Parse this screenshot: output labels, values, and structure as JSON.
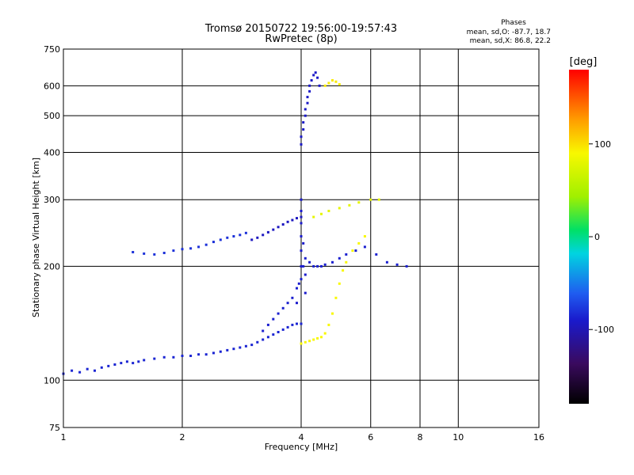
{
  "chart_data": {
    "type": "scatter",
    "title": "Tromsø 20150722 19:56:00-19:57:43",
    "subtitle": "RwPretec (8p)",
    "xlabel": "Frequency [MHz]",
    "ylabel": "Stationary phase Virtual Height [km]",
    "x_scale": "log",
    "y_scale": "log",
    "xlim": [
      1,
      16
    ],
    "ylim": [
      75,
      750
    ],
    "grid": true,
    "x_ticks": [
      {
        "value": 1,
        "label": "1"
      },
      {
        "value": 2,
        "label": "2"
      },
      {
        "value": 4,
        "label": "4"
      },
      {
        "value": 6,
        "label": "6"
      },
      {
        "value": 8,
        "label": "8"
      },
      {
        "value": 10,
        "label": "10"
      },
      {
        "value": 16,
        "label": "16"
      }
    ],
    "y_ticks": [
      {
        "value": 75,
        "label": "75"
      },
      {
        "value": 100,
        "label": "100"
      },
      {
        "value": 200,
        "label": "200"
      },
      {
        "value": 300,
        "label": "300"
      },
      {
        "value": 400,
        "label": "400"
      },
      {
        "value": 500,
        "label": "500"
      },
      {
        "value": 600,
        "label": "600"
      },
      {
        "value": 750,
        "label": "750"
      }
    ],
    "colorbar": {
      "label": "[deg]",
      "range": [
        -180,
        180
      ],
      "ticks": [
        {
          "value": 100,
          "label": "100"
        },
        {
          "value": 0,
          "label": "0"
        },
        {
          "value": -100,
          "label": "-100"
        }
      ]
    },
    "phases_legend": {
      "title": "Phases",
      "lines": [
        "mean, sd,O: -87.7, 18.7",
        "mean, sd,X:  86.8, 22.2"
      ]
    },
    "traces": [
      {
        "phase": -85,
        "points": [
          [
            1.0,
            104
          ],
          [
            1.05,
            106
          ],
          [
            1.1,
            105
          ],
          [
            1.15,
            107
          ],
          [
            1.2,
            106
          ],
          [
            1.25,
            108
          ],
          [
            1.3,
            109
          ],
          [
            1.35,
            110
          ],
          [
            1.4,
            111
          ],
          [
            1.45,
            112
          ],
          [
            1.5,
            111
          ],
          [
            1.55,
            112
          ],
          [
            1.6,
            113
          ],
          [
            1.7,
            114
          ],
          [
            1.8,
            115
          ],
          [
            1.9,
            115
          ],
          [
            2.0,
            116
          ],
          [
            2.1,
            116
          ],
          [
            2.2,
            117
          ],
          [
            2.3,
            117
          ],
          [
            2.4,
            118
          ],
          [
            2.5,
            119
          ],
          [
            2.6,
            120
          ],
          [
            2.7,
            121
          ],
          [
            2.8,
            122
          ],
          [
            2.9,
            123
          ],
          [
            3.0,
            124
          ],
          [
            3.1,
            126
          ],
          [
            3.2,
            128
          ],
          [
            3.3,
            130
          ],
          [
            3.4,
            132
          ],
          [
            3.5,
            134
          ],
          [
            3.6,
            136
          ],
          [
            3.7,
            138
          ],
          [
            3.8,
            140
          ],
          [
            3.9,
            141
          ],
          [
            4.0,
            141
          ]
        ]
      },
      {
        "phase": -88,
        "points": [
          [
            3.2,
            135
          ],
          [
            3.3,
            140
          ],
          [
            3.4,
            145
          ],
          [
            3.5,
            150
          ],
          [
            3.6,
            155
          ],
          [
            3.7,
            160
          ],
          [
            3.8,
            165
          ],
          [
            3.9,
            175
          ],
          [
            4.0,
            185
          ],
          [
            4.05,
            200
          ],
          [
            4.1,
            210
          ],
          [
            4.2,
            205
          ],
          [
            4.3,
            200
          ],
          [
            4.4,
            200
          ],
          [
            4.5,
            200
          ],
          [
            4.6,
            202
          ],
          [
            4.8,
            205
          ],
          [
            5.0,
            210
          ],
          [
            5.2,
            215
          ],
          [
            5.5,
            220
          ],
          [
            5.8,
            225
          ],
          [
            6.2,
            215
          ],
          [
            6.6,
            205
          ],
          [
            7.0,
            202
          ],
          [
            7.4,
            200
          ]
        ]
      },
      {
        "phase": -90,
        "points": [
          [
            3.9,
            160
          ],
          [
            3.95,
            180
          ],
          [
            4.0,
            200
          ],
          [
            4.0,
            220
          ],
          [
            4.0,
            240
          ],
          [
            4.0,
            260
          ],
          [
            4.0,
            280
          ],
          [
            4.0,
            300
          ],
          [
            4.05,
            230
          ],
          [
            4.1,
            190
          ],
          [
            4.1,
            170
          ]
        ]
      },
      {
        "phase": -80,
        "points": [
          [
            1.5,
            218
          ],
          [
            1.6,
            216
          ],
          [
            1.7,
            215
          ],
          [
            1.8,
            217
          ],
          [
            1.9,
            220
          ],
          [
            2.0,
            222
          ],
          [
            2.1,
            223
          ],
          [
            2.2,
            225
          ],
          [
            2.3,
            228
          ],
          [
            2.4,
            232
          ],
          [
            2.5,
            235
          ],
          [
            2.6,
            238
          ],
          [
            2.7,
            240
          ],
          [
            2.8,
            242
          ],
          [
            2.9,
            245
          ]
        ]
      },
      {
        "phase": -95,
        "points": [
          [
            3.0,
            235
          ],
          [
            3.1,
            238
          ],
          [
            3.2,
            242
          ],
          [
            3.3,
            246
          ],
          [
            3.4,
            250
          ],
          [
            3.5,
            254
          ],
          [
            3.6,
            258
          ],
          [
            3.7,
            262
          ],
          [
            3.8,
            265
          ],
          [
            3.9,
            268
          ],
          [
            4.0,
            270
          ]
        ]
      },
      {
        "phase": -92,
        "points": [
          [
            4.0,
            420
          ],
          [
            4.0,
            440
          ],
          [
            4.05,
            460
          ],
          [
            4.05,
            480
          ],
          [
            4.1,
            500
          ],
          [
            4.1,
            520
          ],
          [
            4.15,
            540
          ],
          [
            4.15,
            560
          ],
          [
            4.2,
            580
          ],
          [
            4.2,
            600
          ],
          [
            4.25,
            620
          ],
          [
            4.3,
            640
          ],
          [
            4.35,
            650
          ],
          [
            4.4,
            630
          ],
          [
            4.45,
            600
          ]
        ]
      },
      {
        "phase": 90,
        "points": [
          [
            4.0,
            125
          ],
          [
            4.1,
            126
          ],
          [
            4.2,
            127
          ],
          [
            4.3,
            128
          ],
          [
            4.4,
            129
          ],
          [
            4.5,
            130
          ],
          [
            4.6,
            133
          ],
          [
            4.7,
            140
          ],
          [
            4.8,
            150
          ],
          [
            4.9,
            165
          ],
          [
            5.0,
            180
          ],
          [
            5.1,
            195
          ],
          [
            5.2,
            205
          ],
          [
            5.4,
            220
          ],
          [
            5.6,
            230
          ],
          [
            5.8,
            240
          ]
        ]
      },
      {
        "phase": 80,
        "points": [
          [
            4.3,
            270
          ],
          [
            4.5,
            275
          ],
          [
            4.7,
            280
          ],
          [
            5.0,
            285
          ],
          [
            5.3,
            290
          ],
          [
            5.6,
            295
          ],
          [
            6.0,
            300
          ],
          [
            6.3,
            300
          ]
        ]
      },
      {
        "phase": 95,
        "points": [
          [
            4.6,
            600
          ],
          [
            4.7,
            610
          ],
          [
            4.8,
            620
          ],
          [
            4.9,
            615
          ],
          [
            5.0,
            605
          ]
        ]
      }
    ]
  }
}
